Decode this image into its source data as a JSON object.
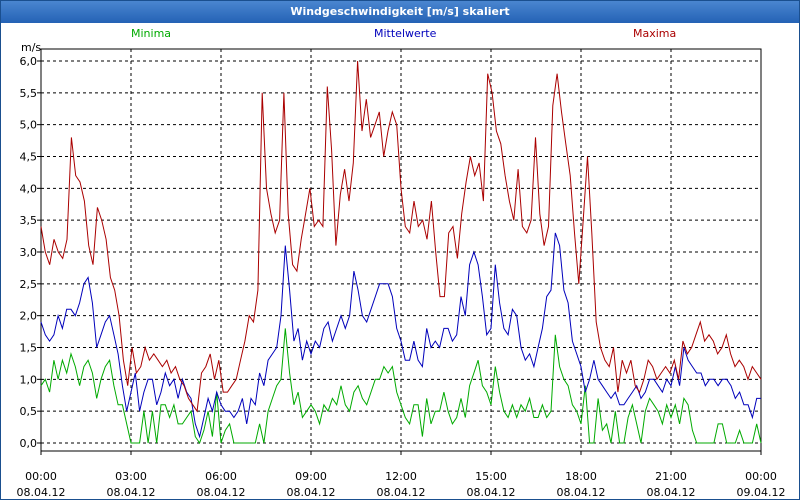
{
  "window_title": "Windgeschwindigkeit [m/s] skaliert",
  "chart_data": {
    "type": "line",
    "title": "Windgeschwindigkeit [m/s] skaliert",
    "ylabel": "m/s",
    "ylim": [
      0,
      6.0
    ],
    "ytick_labels": [
      "0,0",
      "0,5",
      "1,0",
      "1,5",
      "2,0",
      "2,5",
      "3,0",
      "3,5",
      "4,0",
      "4,5",
      "5,0",
      "5,5",
      "6,0"
    ],
    "xtick_labels": [
      {
        "time": "00:00",
        "date": "08.04.12"
      },
      {
        "time": "03:00",
        "date": "08.04.12"
      },
      {
        "time": "06:00",
        "date": "08.04.12"
      },
      {
        "time": "09:00",
        "date": "08.04.12"
      },
      {
        "time": "12:00",
        "date": "08.04.12"
      },
      {
        "time": "15:00",
        "date": "08.04.12"
      },
      {
        "time": "18:00",
        "date": "08.04.12"
      },
      {
        "time": "21:00",
        "date": "08.04.12"
      },
      {
        "time": "00:00",
        "date": "09.04.12"
      }
    ],
    "grid": true,
    "x_hours_start": 0,
    "x_hours_end": 24,
    "series": [
      {
        "name": "Minima",
        "color": "#00aa00",
        "values": [
          0.9,
          1.0,
          0.8,
          1.3,
          1.0,
          1.3,
          1.1,
          1.4,
          1.2,
          0.9,
          1.2,
          1.3,
          1.1,
          0.7,
          1.0,
          1.2,
          1.3,
          0.9,
          0.6,
          0.6,
          0.3,
          0.0,
          0.0,
          0.0,
          0.5,
          0.0,
          0.5,
          0.0,
          0.6,
          0.6,
          0.4,
          0.6,
          0.3,
          0.3,
          0.4,
          0.5,
          0.1,
          0.0,
          0.2,
          0.5,
          0.1,
          0.8,
          0.0,
          0.2,
          0.3,
          0.0,
          0.0,
          0.0,
          0.0,
          0.0,
          0.0,
          0.3,
          0.0,
          0.5,
          0.7,
          0.9,
          1.0,
          1.8,
          1.1,
          0.6,
          0.8,
          0.4,
          0.5,
          0.6,
          0.5,
          0.3,
          0.6,
          0.5,
          0.7,
          0.6,
          0.9,
          0.6,
          0.5,
          0.8,
          0.9,
          0.7,
          0.6,
          0.8,
          1.0,
          1.0,
          1.2,
          1.1,
          1.2,
          0.8,
          0.6,
          0.4,
          0.3,
          0.6,
          0.6,
          0.1,
          0.7,
          0.3,
          0.5,
          0.5,
          0.8,
          0.5,
          0.3,
          0.4,
          0.7,
          0.4,
          0.9,
          1.1,
          1.3,
          0.9,
          0.8,
          0.6,
          1.2,
          0.8,
          0.5,
          0.4,
          0.6,
          0.4,
          0.6,
          0.5,
          0.7,
          0.4,
          0.4,
          0.6,
          0.4,
          0.5,
          1.7,
          1.2,
          1.0,
          0.9,
          0.6,
          0.5,
          0.3,
          0.9,
          0.0,
          0.0,
          0.7,
          0.2,
          0.3,
          0.0,
          0.5,
          0.0,
          0.0,
          0.4,
          0.6,
          0.3,
          0.0,
          0.5,
          0.7,
          0.6,
          0.5,
          0.3,
          0.6,
          0.4,
          0.6,
          0.3,
          0.7,
          0.6,
          0.2,
          0.0,
          0.0,
          0.0,
          0.0,
          0.0,
          0.3,
          0.3,
          0.0,
          0.0,
          0.0,
          0.2,
          0.0,
          0.0,
          0.0,
          0.3,
          0.0
        ],
        "values_note_omit": true
      },
      {
        "name": "Mittelwerte",
        "color": "#0000bb",
        "values": [
          1.9,
          1.7,
          1.6,
          1.7,
          2.0,
          1.8,
          2.1,
          2.1,
          2.0,
          2.2,
          2.5,
          2.6,
          2.2,
          1.5,
          1.7,
          1.9,
          2.0,
          1.7,
          1.4,
          0.9,
          0.5,
          0.8,
          1.1,
          0.5,
          0.8,
          1.0,
          1.0,
          0.6,
          0.8,
          1.1,
          0.9,
          1.0,
          0.7,
          1.0,
          0.8,
          0.7,
          0.3,
          0.1,
          0.4,
          0.7,
          0.5,
          0.8,
          0.6,
          0.5,
          0.5,
          0.4,
          0.5,
          0.7,
          0.3,
          0.7,
          0.6,
          1.1,
          0.9,
          1.3,
          1.4,
          1.5,
          2.0,
          3.1,
          2.4,
          1.6,
          1.8,
          1.3,
          1.6,
          1.4,
          1.6,
          1.5,
          1.8,
          1.9,
          1.6,
          1.8,
          2.0,
          1.8,
          2.0,
          2.7,
          2.4,
          2.0,
          1.9,
          2.1,
          2.3,
          2.5,
          2.5,
          2.5,
          2.3,
          1.8,
          1.6,
          1.3,
          1.3,
          1.6,
          1.3,
          1.2,
          1.8,
          1.5,
          1.6,
          1.5,
          1.8,
          1.8,
          1.6,
          1.7,
          2.3,
          2.0,
          2.8,
          3.0,
          2.8,
          2.3,
          1.7,
          1.8,
          2.8,
          2.2,
          1.8,
          1.7,
          2.1,
          2.0,
          1.5,
          1.3,
          1.4,
          1.2,
          1.5,
          1.8,
          2.3,
          2.4,
          3.3,
          3.1,
          2.4,
          2.2,
          1.6,
          1.4,
          1.2,
          0.8,
          1.0,
          1.3,
          1.0,
          0.9,
          0.8,
          0.7,
          0.8,
          0.6,
          0.6,
          0.7,
          0.8,
          0.9,
          0.7,
          0.8,
          1.0,
          1.0,
          0.9,
          0.8,
          1.0,
          0.9,
          1.2,
          0.9,
          1.5,
          1.3,
          1.2,
          1.1,
          1.1,
          0.9,
          1.0,
          1.0,
          0.9,
          1.0,
          1.0,
          0.9,
          0.7,
          0.8,
          0.6,
          0.6,
          0.4,
          0.7,
          0.7
        ],
        "values_note_omit": true
      },
      {
        "name": "Maxima",
        "color": "#aa0000",
        "values": [
          3.4,
          3.0,
          2.8,
          3.2,
          3.0,
          2.9,
          3.2,
          4.8,
          4.2,
          4.1,
          3.8,
          3.1,
          2.8,
          3.7,
          3.5,
          3.2,
          2.6,
          2.4,
          2.0,
          1.3,
          0.9,
          1.5,
          1.1,
          1.2,
          1.5,
          1.3,
          1.4,
          1.3,
          1.2,
          1.3,
          1.1,
          1.2,
          1.0,
          0.9,
          0.7,
          0.6,
          0.5,
          1.1,
          1.2,
          1.4,
          1.0,
          1.3,
          0.8,
          0.8,
          0.9,
          1.0,
          1.3,
          1.6,
          2.0,
          1.9,
          2.4,
          5.5,
          4.0,
          3.6,
          3.3,
          3.5,
          5.5,
          3.6,
          2.8,
          2.7,
          3.2,
          3.6,
          4.0,
          3.4,
          3.5,
          3.4,
          5.6,
          4.6,
          3.1,
          3.9,
          4.3,
          3.8,
          4.4,
          6.0,
          4.9,
          5.4,
          4.8,
          5.0,
          5.2,
          4.5,
          4.9,
          5.2,
          5.0,
          4.0,
          3.4,
          3.3,
          3.8,
          3.4,
          3.5,
          3.2,
          3.8,
          3.0,
          2.3,
          2.3,
          3.3,
          3.4,
          2.9,
          3.6,
          4.1,
          4.5,
          4.2,
          4.4,
          3.8,
          5.8,
          5.5,
          4.9,
          4.7,
          4.2,
          3.8,
          3.5,
          4.3,
          3.4,
          3.3,
          3.5,
          4.8,
          3.6,
          3.1,
          3.4,
          5.3,
          5.8,
          5.2,
          4.7,
          4.2,
          3.3,
          2.5,
          3.5,
          4.5,
          3.3,
          1.9,
          1.5,
          1.3,
          1.2,
          1.5,
          0.8,
          1.3,
          1.1,
          1.3,
          0.9,
          0.8,
          1.0,
          1.3,
          1.2,
          1.0,
          1.1,
          1.2,
          1.1,
          1.3,
          1.0,
          1.6,
          1.4,
          1.5,
          1.7,
          1.9,
          1.6,
          1.7,
          1.6,
          1.4,
          1.5,
          1.7,
          1.4,
          1.2,
          1.3,
          1.2,
          1.0,
          1.2,
          1.1,
          1.0
        ],
        "values_note_omit": true
      }
    ]
  }
}
